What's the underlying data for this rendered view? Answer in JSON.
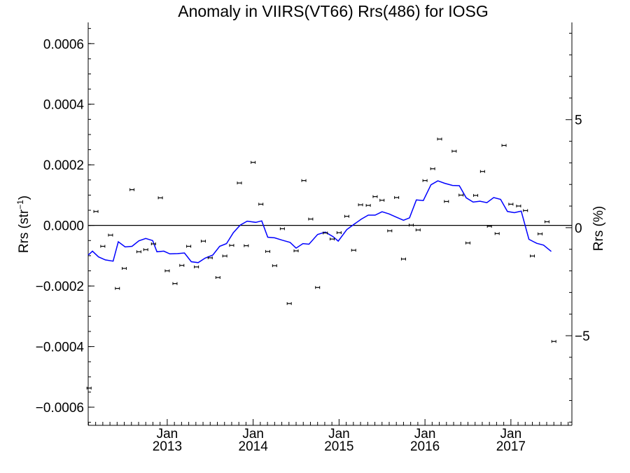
{
  "chart_data": {
    "type": "scatter",
    "title": "Anomaly in VIIRS(VT66) Rrs(486) for IOSG",
    "ylabel_main": "Rrs (str",
    "ylabel_sup": "−1",
    "ylabel_close": ")",
    "ylabel_right": "Rrs (%)",
    "xlim": [
      2012.08,
      2017.71
    ],
    "ylim_left": [
      -0.00066,
      0.00067
    ],
    "ylim_right": [
      -9.15,
      9.5
    ],
    "yticks_left": [
      {
        "v": 0.0006,
        "label": "0.0006"
      },
      {
        "v": 0.0004,
        "label": "0.0004"
      },
      {
        "v": 0.0002,
        "label": "0.0002"
      },
      {
        "v": 0.0,
        "label": "0.0000"
      },
      {
        "v": -0.0002,
        "label": "−0.0002"
      },
      {
        "v": -0.0004,
        "label": "−0.0004"
      },
      {
        "v": -0.0006,
        "label": "−0.0006"
      }
    ],
    "yticks_right": [
      {
        "v": 5,
        "label": "5"
      },
      {
        "v": 0,
        "label": "0"
      },
      {
        "v": -5,
        "label": "−5"
      }
    ],
    "xticks": [
      {
        "v": 2013.0,
        "label": "Jan",
        "year": "2013"
      },
      {
        "v": 2014.0,
        "label": "Jan",
        "year": "2014"
      },
      {
        "v": 2015.0,
        "label": "Jan",
        "year": "2015"
      },
      {
        "v": 2016.0,
        "label": "Jan",
        "year": "2016"
      },
      {
        "v": 2017.0,
        "label": "Jan",
        "year": "2017"
      }
    ],
    "points": [
      {
        "x": 2012.09,
        "y": -0.000537
      },
      {
        "x": 2012.17,
        "y": 4.6e-05
      },
      {
        "x": 2012.25,
        "y": -6.9e-05
      },
      {
        "x": 2012.34,
        "y": -3.2e-05
      },
      {
        "x": 2012.42,
        "y": -0.000208
      },
      {
        "x": 2012.5,
        "y": -0.000142
      },
      {
        "x": 2012.59,
        "y": 0.000118
      },
      {
        "x": 2012.67,
        "y": -8.7e-05
      },
      {
        "x": 2012.75,
        "y": -8e-05
      },
      {
        "x": 2012.84,
        "y": -6.1e-05
      },
      {
        "x": 2012.92,
        "y": 9.1e-05
      },
      {
        "x": 2013.0,
        "y": -0.00015
      },
      {
        "x": 2013.09,
        "y": -0.000192
      },
      {
        "x": 2013.17,
        "y": -0.000132
      },
      {
        "x": 2013.25,
        "y": -6.9e-05
      },
      {
        "x": 2013.34,
        "y": -0.000137
      },
      {
        "x": 2013.42,
        "y": -5.2e-05
      },
      {
        "x": 2013.5,
        "y": -0.000107
      },
      {
        "x": 2013.59,
        "y": -0.000172
      },
      {
        "x": 2013.67,
        "y": -0.000101
      },
      {
        "x": 2013.75,
        "y": -6.6e-05
      },
      {
        "x": 2013.84,
        "y": 0.00014
      },
      {
        "x": 2013.92,
        "y": -6.7e-05
      },
      {
        "x": 2014.0,
        "y": 0.000208
      },
      {
        "x": 2014.09,
        "y": 7e-05
      },
      {
        "x": 2014.17,
        "y": -8.6e-05
      },
      {
        "x": 2014.25,
        "y": -0.000133
      },
      {
        "x": 2014.34,
        "y": -1.1e-05
      },
      {
        "x": 2014.42,
        "y": -0.000258
      },
      {
        "x": 2014.5,
        "y": -8.4e-05
      },
      {
        "x": 2014.59,
        "y": 0.000148
      },
      {
        "x": 2014.67,
        "y": 2.1e-05
      },
      {
        "x": 2014.75,
        "y": -0.000205
      },
      {
        "x": 2014.84,
        "y": -2.5e-05
      },
      {
        "x": 2014.92,
        "y": -4.5e-05
      },
      {
        "x": 2015.0,
        "y": -2.4e-05
      },
      {
        "x": 2015.09,
        "y": 3e-05
      },
      {
        "x": 2015.17,
        "y": -8.2e-05
      },
      {
        "x": 2015.25,
        "y": 6.8e-05
      },
      {
        "x": 2015.34,
        "y": 6.6e-05
      },
      {
        "x": 2015.42,
        "y": 9.5e-05
      },
      {
        "x": 2015.5,
        "y": 8.3e-05
      },
      {
        "x": 2015.59,
        "y": -1.8e-05
      },
      {
        "x": 2015.67,
        "y": 9.2e-05
      },
      {
        "x": 2015.75,
        "y": -0.000111
      },
      {
        "x": 2015.84,
        "y": 1e-06
      },
      {
        "x": 2015.92,
        "y": -1.5e-05
      },
      {
        "x": 2016.0,
        "y": 0.000148
      },
      {
        "x": 2016.09,
        "y": 0.000187
      },
      {
        "x": 2016.17,
        "y": 0.000285
      },
      {
        "x": 2016.25,
        "y": 7.9e-05
      },
      {
        "x": 2016.34,
        "y": 0.000245
      },
      {
        "x": 2016.42,
        "y": 0.0001
      },
      {
        "x": 2016.5,
        "y": -5.8e-05
      },
      {
        "x": 2016.59,
        "y": 9.9e-05
      },
      {
        "x": 2016.67,
        "y": 0.000178
      },
      {
        "x": 2016.75,
        "y": -3e-06
      },
      {
        "x": 2016.84,
        "y": -2.7e-05
      },
      {
        "x": 2016.92,
        "y": 0.000264
      },
      {
        "x": 2017.0,
        "y": 7e-05
      },
      {
        "x": 2017.09,
        "y": 6.4e-05
      },
      {
        "x": 2017.17,
        "y": 4.9e-05
      },
      {
        "x": 2017.25,
        "y": -0.000101
      },
      {
        "x": 2017.34,
        "y": -2.8e-05
      },
      {
        "x": 2017.42,
        "y": 1.2e-05
      },
      {
        "x": 2017.5,
        "y": -0.000383
      }
    ],
    "line": [
      {
        "x": 2012.08,
        "y": -9.8e-05
      },
      {
        "x": 2012.13,
        "y": -8.5e-05
      },
      {
        "x": 2012.2,
        "y": -0.000104
      },
      {
        "x": 2012.28,
        "y": -0.000114
      },
      {
        "x": 2012.37,
        "y": -0.000118
      },
      {
        "x": 2012.43,
        "y": -5.4e-05
      },
      {
        "x": 2012.51,
        "y": -7.1e-05
      },
      {
        "x": 2012.59,
        "y": -6.9e-05
      },
      {
        "x": 2012.67,
        "y": -5.1e-05
      },
      {
        "x": 2012.75,
        "y": -4.3e-05
      },
      {
        "x": 2012.83,
        "y": -5e-05
      },
      {
        "x": 2012.88,
        "y": -8.7e-05
      },
      {
        "x": 2012.96,
        "y": -8.5e-05
      },
      {
        "x": 2013.03,
        "y": -9.4e-05
      },
      {
        "x": 2013.12,
        "y": -9.3e-05
      },
      {
        "x": 2013.2,
        "y": -9.1e-05
      },
      {
        "x": 2013.28,
        "y": -0.00012
      },
      {
        "x": 2013.36,
        "y": -0.000123
      },
      {
        "x": 2013.44,
        "y": -0.000108
      },
      {
        "x": 2013.53,
        "y": -9.8e-05
      },
      {
        "x": 2013.61,
        "y": -6.9e-05
      },
      {
        "x": 2013.69,
        "y": -6e-05
      },
      {
        "x": 2013.77,
        "y": -2.4e-05
      },
      {
        "x": 2013.85,
        "y": 1e-06
      },
      {
        "x": 2013.93,
        "y": 1.4e-05
      },
      {
        "x": 2014.03,
        "y": 1e-05
      },
      {
        "x": 2014.1,
        "y": 1.5e-05
      },
      {
        "x": 2014.17,
        "y": -3.9e-05
      },
      {
        "x": 2014.25,
        "y": -4.1e-05
      },
      {
        "x": 2014.34,
        "y": -4.9e-05
      },
      {
        "x": 2014.43,
        "y": -5.6e-05
      },
      {
        "x": 2014.5,
        "y": -7.5e-05
      },
      {
        "x": 2014.58,
        "y": -6e-05
      },
      {
        "x": 2014.65,
        "y": -6.2e-05
      },
      {
        "x": 2014.75,
        "y": -3e-05
      },
      {
        "x": 2014.84,
        "y": -2.2e-05
      },
      {
        "x": 2014.93,
        "y": -3.7e-05
      },
      {
        "x": 2014.99,
        "y": -5.2e-05
      },
      {
        "x": 2015.09,
        "y": -1.4e-05
      },
      {
        "x": 2015.17,
        "y": 3e-06
      },
      {
        "x": 2015.26,
        "y": 2.1e-05
      },
      {
        "x": 2015.34,
        "y": 3.4e-05
      },
      {
        "x": 2015.42,
        "y": 3.4e-05
      },
      {
        "x": 2015.5,
        "y": 4.5e-05
      },
      {
        "x": 2015.58,
        "y": 3.8e-05
      },
      {
        "x": 2015.66,
        "y": 2.8e-05
      },
      {
        "x": 2015.75,
        "y": 1.7e-05
      },
      {
        "x": 2015.82,
        "y": 2.5e-05
      },
      {
        "x": 2015.9,
        "y": 8.4e-05
      },
      {
        "x": 2015.98,
        "y": 8.2e-05
      },
      {
        "x": 2016.07,
        "y": 0.000134
      },
      {
        "x": 2016.15,
        "y": 0.000147
      },
      {
        "x": 2016.23,
        "y": 0.000139
      },
      {
        "x": 2016.32,
        "y": 0.000132
      },
      {
        "x": 2016.4,
        "y": 0.000131
      },
      {
        "x": 2016.48,
        "y": 9.1e-05
      },
      {
        "x": 2016.56,
        "y": 7.7e-05
      },
      {
        "x": 2016.64,
        "y": 8e-05
      },
      {
        "x": 2016.72,
        "y": 7.5e-05
      },
      {
        "x": 2016.8,
        "y": 9.2e-05
      },
      {
        "x": 2016.88,
        "y": 8.6e-05
      },
      {
        "x": 2016.96,
        "y": 4.6e-05
      },
      {
        "x": 2017.04,
        "y": 4.2e-05
      },
      {
        "x": 2017.12,
        "y": 4.7e-05
      },
      {
        "x": 2017.21,
        "y": -4.6e-05
      },
      {
        "x": 2017.3,
        "y": -5.9e-05
      },
      {
        "x": 2017.38,
        "y": -6.5e-05
      },
      {
        "x": 2017.47,
        "y": -8.6e-05
      }
    ],
    "colors": {
      "line": "#0000ff",
      "points": "#000000",
      "axis": "#000000",
      "zero_line": "#000000"
    }
  }
}
